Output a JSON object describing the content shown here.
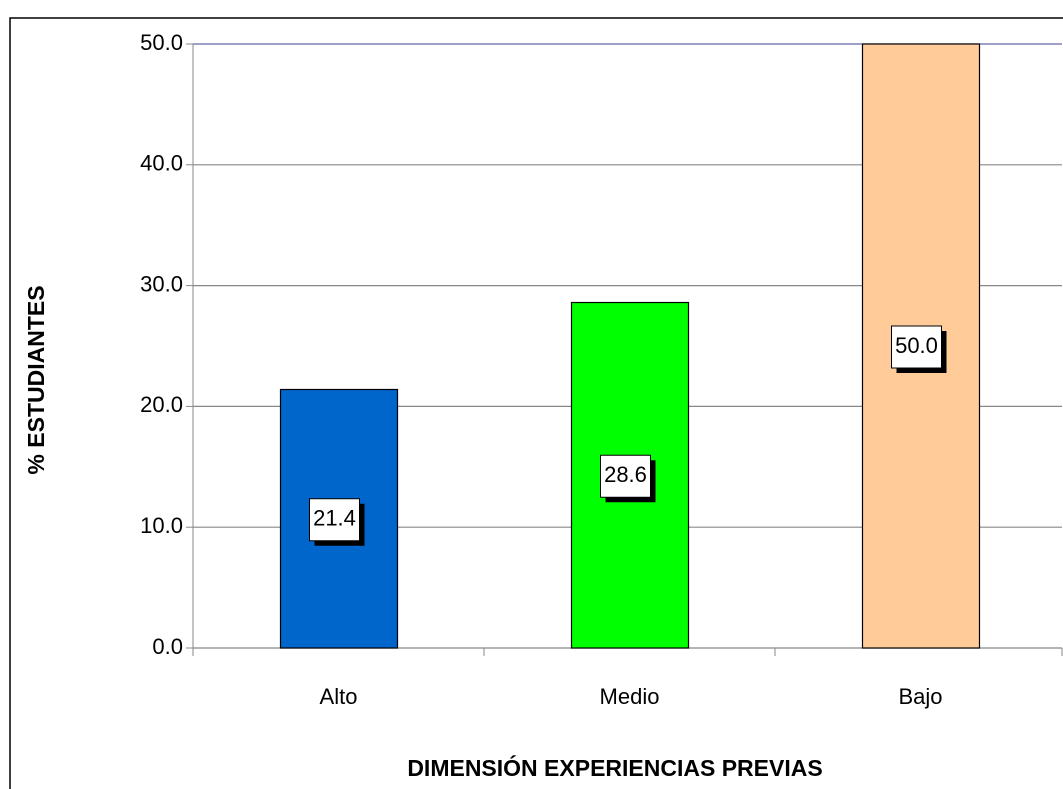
{
  "chart_data": {
    "type": "bar",
    "xlabel": "DIMENSIÓN EXPERIENCIAS PREVIAS",
    "ylabel": "% ESTUDIANTES",
    "categories": [
      "Alto",
      "Medio",
      "Bajo"
    ],
    "values": [
      21.4,
      28.6,
      50
    ],
    "value_labels": [
      "21.4",
      "28.6",
      "50.0"
    ],
    "colors": [
      "#0066cc",
      "#00ff00",
      "#ffcc99"
    ],
    "ylim": [
      0,
      50
    ],
    "yticks": [
      {
        "value": 0,
        "label": "0.0"
      },
      {
        "value": 10,
        "label": "10.0"
      },
      {
        "value": 20,
        "label": "20.0"
      },
      {
        "value": 30,
        "label": "30.0"
      },
      {
        "value": 40,
        "label": "40.0"
      },
      {
        "value": 50,
        "label": "50.0"
      }
    ],
    "grid": true
  }
}
